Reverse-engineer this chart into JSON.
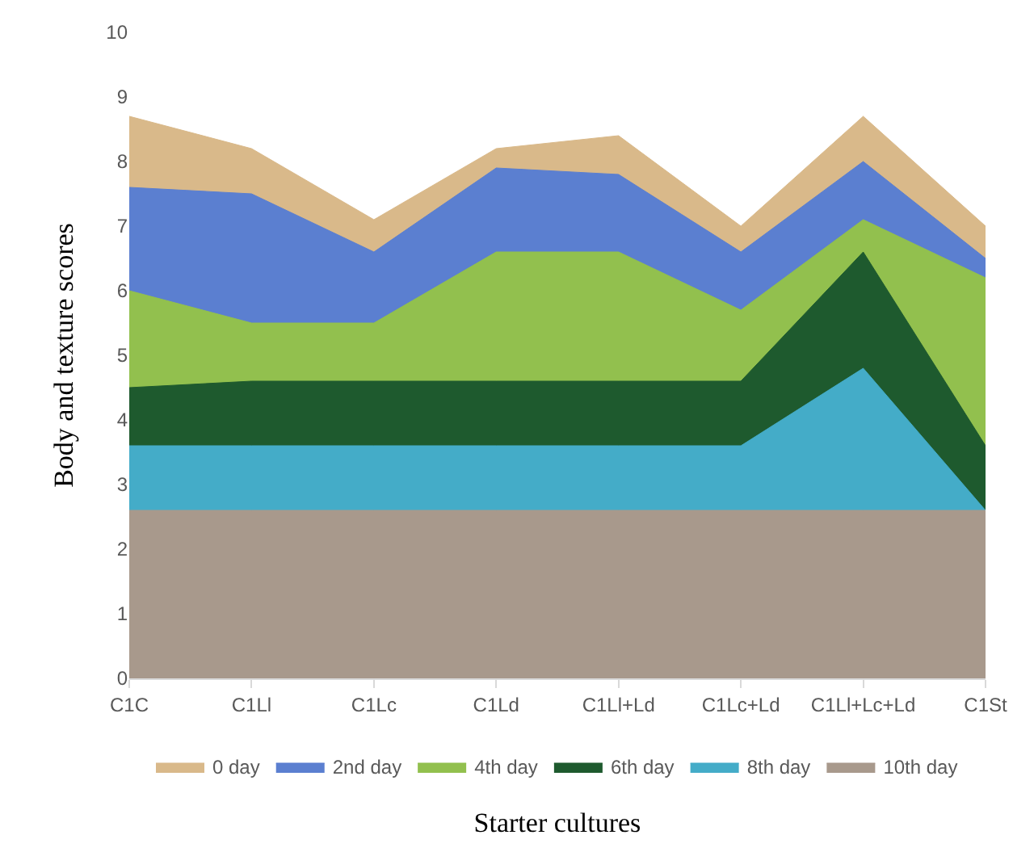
{
  "chart_data": {
    "type": "area",
    "xlabel": "Starter cultures",
    "ylabel": "Body and texture scores",
    "categories": [
      "C1C",
      "C1Ll",
      "C1Lc",
      "C1Ld",
      "C1Ll+Ld",
      "C1Lc+Ld",
      "C1Ll+Lc+Ld",
      "C1St"
    ],
    "series": [
      {
        "name": "0 day",
        "color": "#d9b98a",
        "values": [
          8.7,
          8.2,
          7.1,
          8.2,
          8.4,
          7.0,
          8.7,
          7.0
        ]
      },
      {
        "name": "2nd day",
        "color": "#5b7fd0",
        "values": [
          7.6,
          7.5,
          6.6,
          7.9,
          7.8,
          6.6,
          8.0,
          6.5
        ]
      },
      {
        "name": "4th day",
        "color": "#92c04e",
        "values": [
          6.0,
          5.5,
          5.5,
          6.6,
          6.6,
          5.7,
          7.1,
          6.2
        ]
      },
      {
        "name": "6th day",
        "color": "#1e5a2e",
        "values": [
          4.5,
          4.6,
          4.6,
          4.6,
          4.6,
          4.6,
          6.6,
          3.6
        ]
      },
      {
        "name": "8th day",
        "color": "#44acc8",
        "values": [
          3.6,
          3.6,
          3.6,
          3.6,
          3.6,
          3.6,
          4.8,
          2.6
        ]
      },
      {
        "name": "10th day",
        "color": "#a8998c",
        "values": [
          2.6,
          2.6,
          2.6,
          2.6,
          2.6,
          2.6,
          2.6,
          2.6
        ]
      }
    ],
    "ylim": [
      0,
      10
    ],
    "yticks": [
      0,
      1,
      2,
      3,
      4,
      5,
      6,
      7,
      8,
      9,
      10
    ],
    "legend": "bottom"
  }
}
